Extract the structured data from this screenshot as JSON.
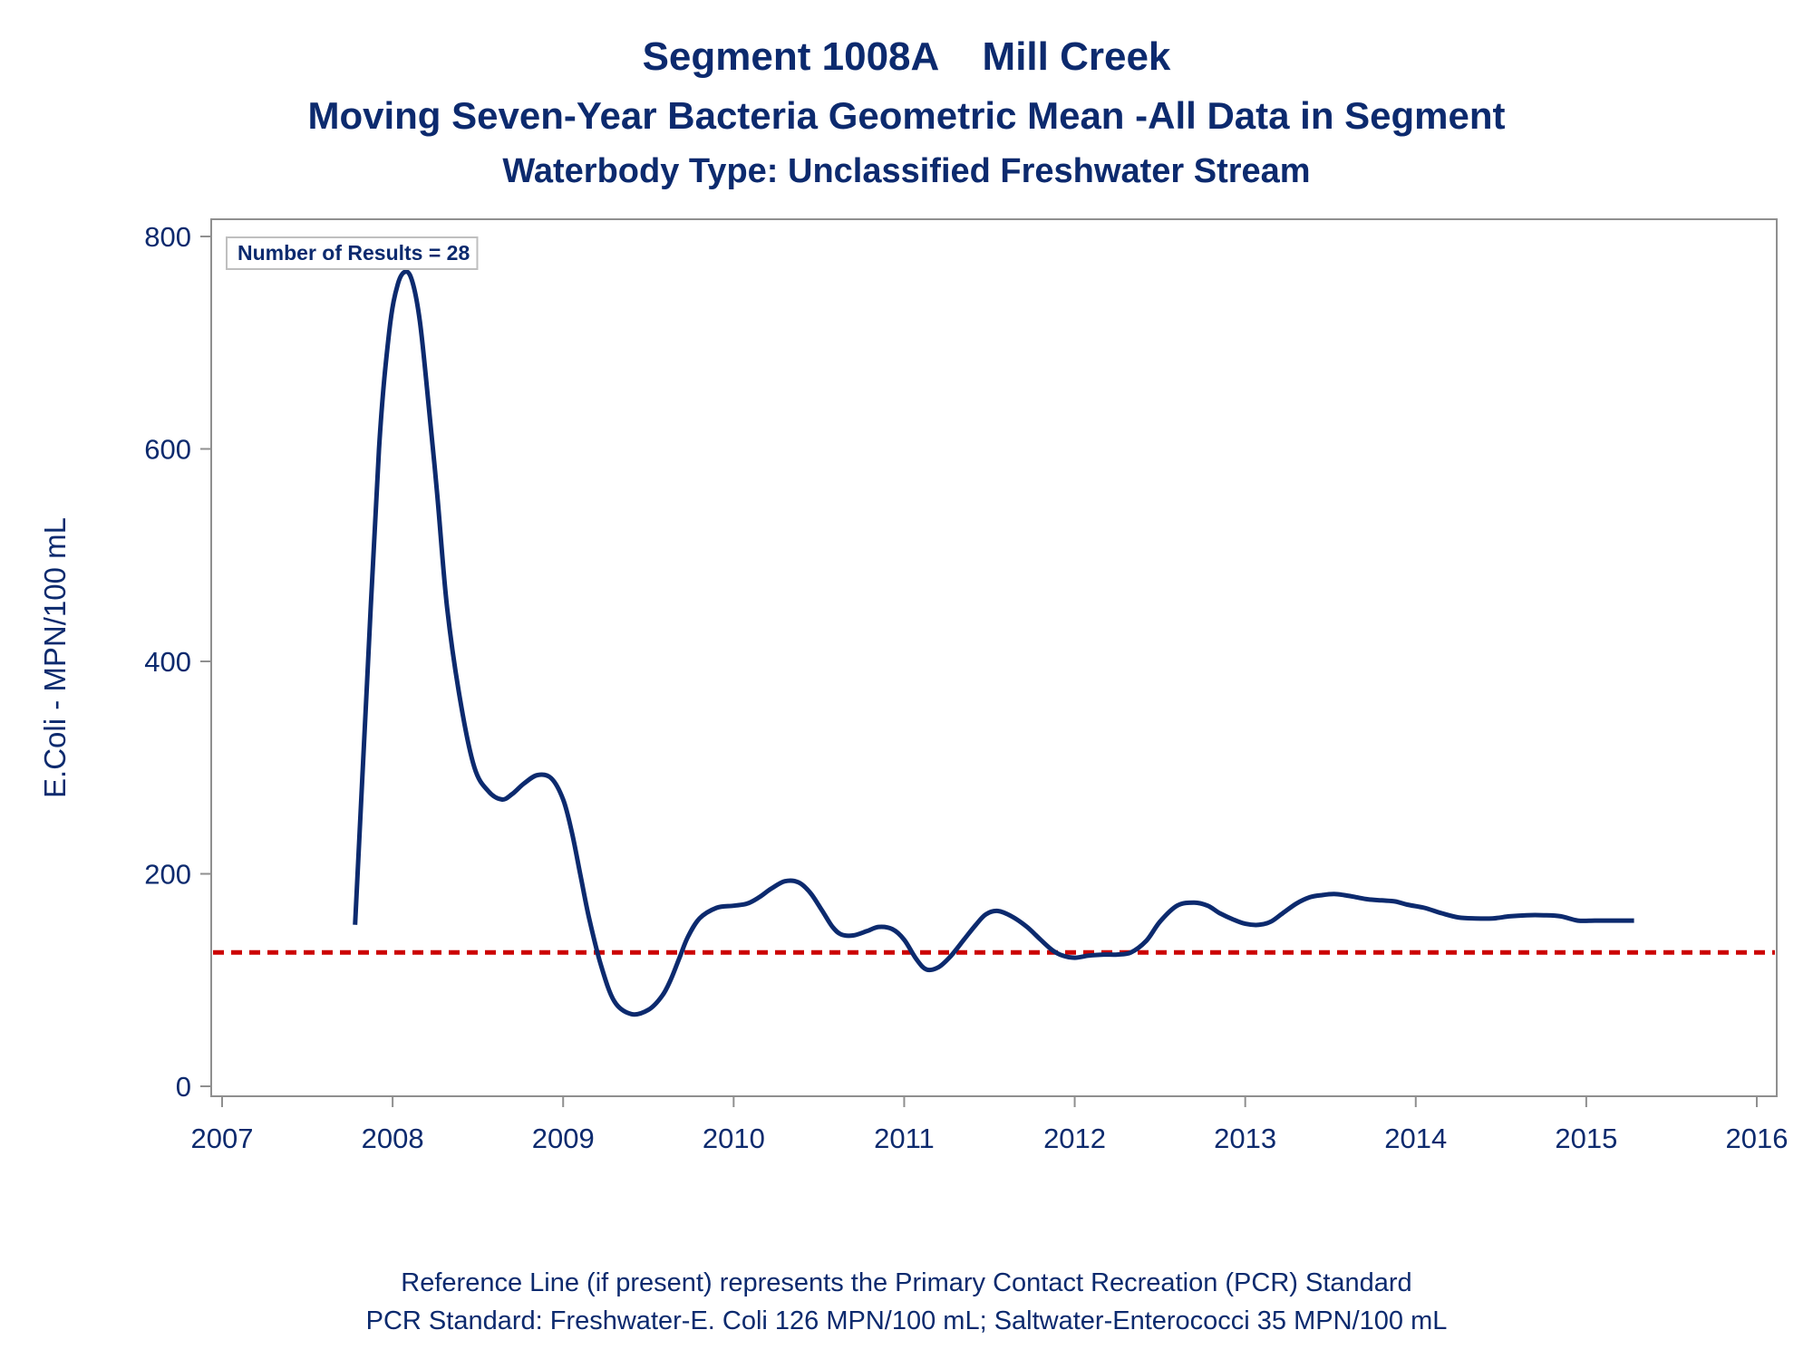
{
  "titles": {
    "line1": "Segment 1008A    Mill Creek",
    "line2": "Moving Seven-Year Bacteria Geometric Mean -All Data in Segment",
    "line3": "Waterbody Type: Unclassified Freshwater Stream"
  },
  "footnotes": {
    "line1": "Reference Line (if present) represents the Primary Contact Recreation (PCR) Standard",
    "line2": "PCR Standard: Freshwater-E. Coli 126 MPN/100 mL; Saltwater-Enterococci 35 MPN/100 mL"
  },
  "colors": {
    "text": "#0c2a6e",
    "series": "#0c2a6e",
    "reference": "#cc0000",
    "frame": "#8f8f8f"
  },
  "chart_data": {
    "type": "line",
    "title": "Segment 1008A    Mill Creek",
    "subtitle": "Moving Seven-Year Bacteria Geometric Mean -All Data in Segment",
    "xlabel": "",
    "ylabel": "E.Coli - MPN/100 mL",
    "xlim": [
      2007,
      2016
    ],
    "ylim": [
      0,
      800
    ],
    "xticks": [
      2007,
      2008,
      2009,
      2010,
      2011,
      2012,
      2013,
      2014,
      2015,
      2016
    ],
    "yticks": [
      0,
      200,
      400,
      600,
      800
    ],
    "grid": false,
    "inset_label": "Number of Results = 28",
    "reference_line": {
      "y": 126,
      "style": "dashed"
    },
    "series": [
      {
        "x": [
          2007.78,
          2007.85,
          2007.92,
          2007.98,
          2008.03,
          2008.08,
          2008.12,
          2008.16,
          2008.2,
          2008.26,
          2008.32,
          2008.4,
          2008.48,
          2008.56,
          2008.64,
          2008.7,
          2008.77,
          2008.85,
          2008.93,
          2009.0,
          2009.05,
          2009.1,
          2009.15,
          2009.22,
          2009.3,
          2009.4,
          2009.5,
          2009.58,
          2009.63,
          2009.68,
          2009.73,
          2009.8,
          2009.9,
          2010.0,
          2010.08,
          2010.15,
          2010.22,
          2010.3,
          2010.38,
          2010.45,
          2010.52,
          2010.58,
          2010.63,
          2010.7,
          2010.78,
          2010.85,
          2010.93,
          2011.0,
          2011.07,
          2011.13,
          2011.2,
          2011.27,
          2011.35,
          2011.42,
          2011.48,
          2011.55,
          2011.63,
          2011.72,
          2011.8,
          2011.87,
          2011.93,
          2012.0,
          2012.08,
          2012.17,
          2012.25,
          2012.33,
          2012.42,
          2012.5,
          2012.6,
          2012.7,
          2012.78,
          2012.85,
          2012.93,
          2013.0,
          2013.08,
          2013.15,
          2013.22,
          2013.3,
          2013.38,
          2013.45,
          2013.52,
          2013.58,
          2013.65,
          2013.72,
          2013.8,
          2013.88,
          2013.95,
          2014.05,
          2014.15,
          2014.25,
          2014.35,
          2014.45,
          2014.55,
          2014.65,
          2014.75,
          2014.85,
          2014.95,
          2015.05,
          2015.15,
          2015.22,
          2015.28
        ],
        "y": [
          152,
          380,
          600,
          710,
          755,
          767,
          755,
          720,
          660,
          560,
          450,
          360,
          300,
          278,
          270,
          275,
          285,
          293,
          290,
          270,
          240,
          200,
          160,
          115,
          80,
          68,
          72,
          85,
          100,
          120,
          140,
          158,
          168,
          170,
          172,
          178,
          186,
          193,
          192,
          182,
          165,
          150,
          143,
          142,
          146,
          150,
          148,
          138,
          120,
          110,
          112,
          122,
          138,
          152,
          162,
          165,
          160,
          150,
          138,
          128,
          123,
          121,
          123,
          124,
          124,
          126,
          137,
          155,
          170,
          173,
          170,
          163,
          157,
          153,
          152,
          155,
          163,
          172,
          178,
          180,
          181,
          180,
          178,
          176,
          175,
          174,
          171,
          168,
          163,
          159,
          158,
          158,
          160,
          161,
          161,
          160,
          156,
          156,
          156,
          156,
          156
        ]
      }
    ]
  }
}
